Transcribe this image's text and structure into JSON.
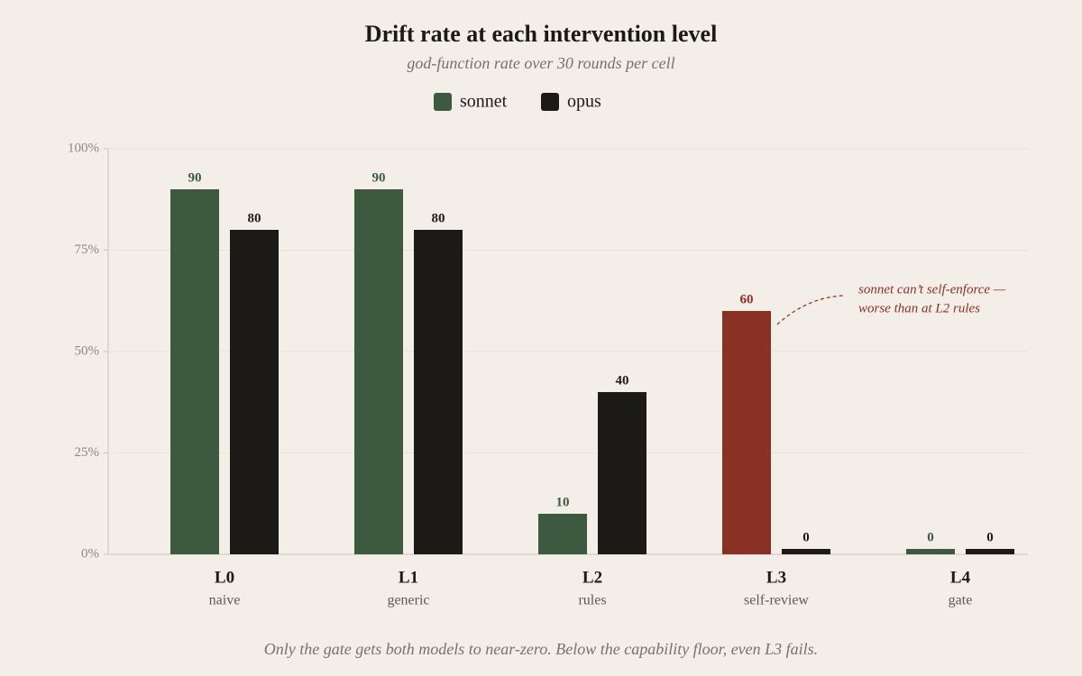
{
  "chart_data": {
    "type": "bar",
    "title": "Drift rate at each intervention level",
    "subtitle": "god-function rate over 30 rounds per cell",
    "categories": [
      "L0",
      "L1",
      "L2",
      "L3",
      "L4"
    ],
    "category_sublabels": [
      "naive",
      "generic",
      "rules",
      "self-review",
      "gate"
    ],
    "series": [
      {
        "name": "sonnet",
        "color": "#3d5a40",
        "colors": [
          "#3d5a40",
          "#3d5a40",
          "#3d5a40",
          "#8b3024",
          "#3d5a40"
        ],
        "values": [
          90,
          90,
          10,
          60,
          0
        ]
      },
      {
        "name": "opus",
        "color": "#1c1a17",
        "values": [
          80,
          80,
          40,
          0,
          0
        ]
      }
    ],
    "ylim": [
      0,
      100
    ],
    "yticks": [
      {
        "value": 0,
        "label": "0%"
      },
      {
        "value": 25,
        "label": "25%"
      },
      {
        "value": 50,
        "label": "50%"
      },
      {
        "value": 75,
        "label": "75%"
      },
      {
        "value": 100,
        "label": "100%"
      }
    ],
    "grid": true,
    "annotation": [
      "sonnet can’t self-enforce —",
      "worse than at L2 rules"
    ],
    "footnote": "Only the gate gets both models to near-zero. Below the capability floor, even L3 fails."
  }
}
